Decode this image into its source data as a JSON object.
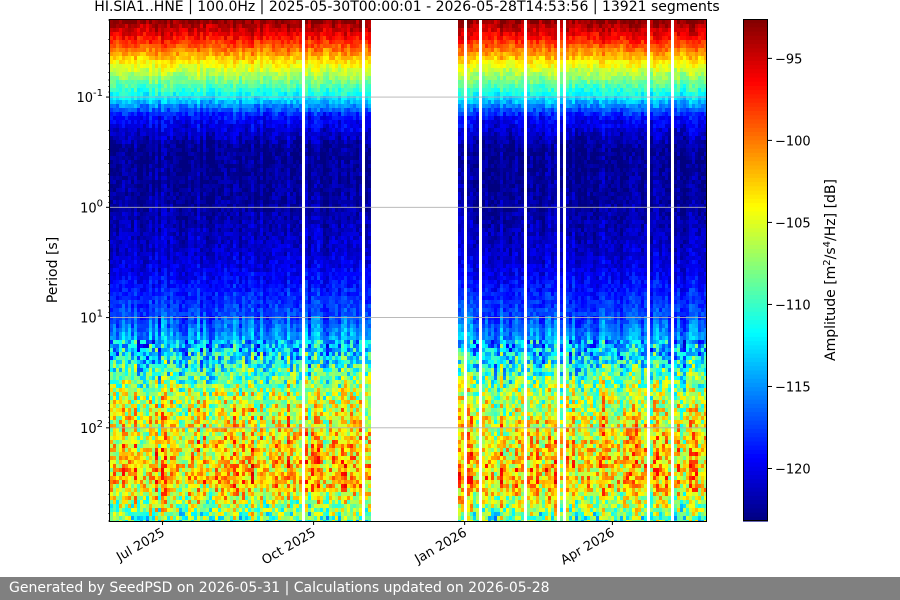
{
  "chart_data": {
    "type": "heatmap",
    "title": "HI.SIA1..HNE | 100.0Hz | 2025-05-30T00:00:01 - 2026-05-28T14:53:56 | 13921 segments",
    "ylabel": "Period [s]",
    "y_scale": "log",
    "y_inverted": true,
    "y_range_s": [
      0.02,
      700
    ],
    "y_ticks": [
      {
        "value": 0.1,
        "label": "10^-1"
      },
      {
        "value": 1,
        "label": "10^0"
      },
      {
        "value": 10,
        "label": "10^1"
      },
      {
        "value": 100,
        "label": "10^2"
      }
    ],
    "x_range": [
      "2025-05-30",
      "2026-05-28"
    ],
    "x_ticks": [
      {
        "value": "2025-07-01",
        "label": "Jul 2025"
      },
      {
        "value": "2025-10-01",
        "label": "Oct 2025"
      },
      {
        "value": "2026-01-01",
        "label": "Jan 2026"
      },
      {
        "value": "2026-04-01",
        "label": "Apr 2026"
      }
    ],
    "data_gap": [
      "2025-11-05",
      "2025-12-28"
    ],
    "horizontal_grid": true,
    "colormap": "jet",
    "colorbar": {
      "label": "Amplitude [m^2/s^4/Hz] [dB]",
      "range": [
        -123.2,
        -92.6
      ],
      "ticks": [
        -95,
        -100,
        -105,
        -110,
        -115,
        -120
      ]
    },
    "amplitude_profile_db": [
      {
        "period_s": 0.02,
        "db": -92.8
      },
      {
        "period_s": 0.03,
        "db": -97
      },
      {
        "period_s": 0.05,
        "db": -104
      },
      {
        "period_s": 0.1,
        "db": -112
      },
      {
        "period_s": 0.15,
        "db": -119
      },
      {
        "period_s": 0.3,
        "db": -122.6
      },
      {
        "period_s": 1,
        "db": -122
      },
      {
        "period_s": 3,
        "db": -120.5
      },
      {
        "period_s": 10,
        "db": -117
      },
      {
        "period_s": 20,
        "db": -113
      },
      {
        "period_s": 50,
        "db": -106
      },
      {
        "period_s": 100,
        "db": -104
      },
      {
        "period_s": 300,
        "db": -102
      },
      {
        "period_s": 700,
        "db": -109
      }
    ]
  },
  "footer": {
    "text": "Generated by SeedPSD on 2026-05-31 | Calculations updated on 2026-05-28"
  }
}
